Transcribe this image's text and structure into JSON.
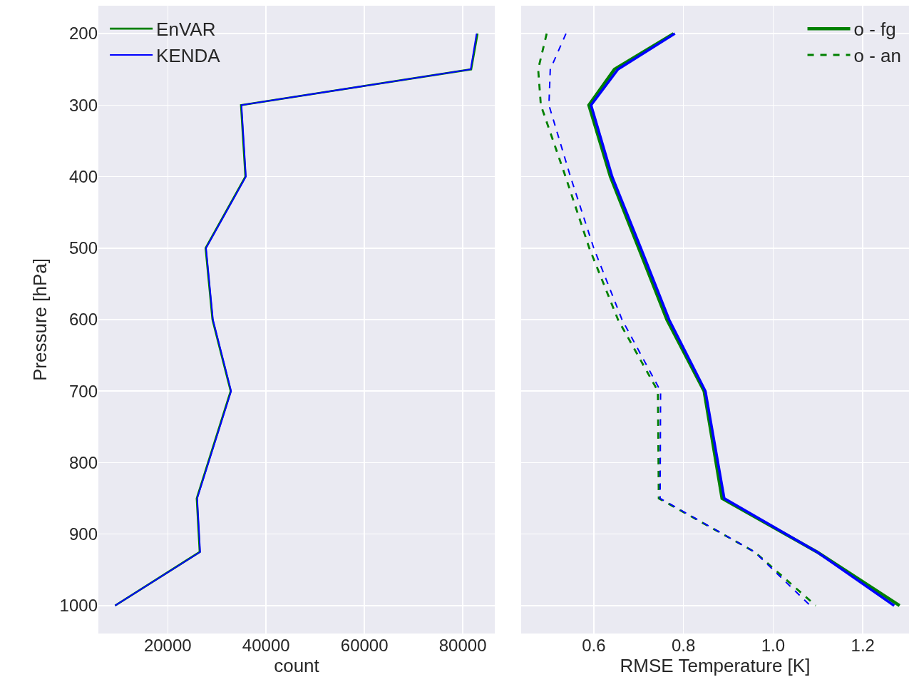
{
  "chart_data": [
    {
      "type": "line",
      "xlabel": "count",
      "ylabel": "Pressure [hPa]",
      "xlim": [
        5900,
        86500
      ],
      "xticks": [
        20000,
        40000,
        60000,
        80000
      ],
      "ylim": [
        1039,
        161
      ],
      "yticks": [
        200,
        300,
        400,
        500,
        600,
        700,
        800,
        900,
        1000
      ],
      "grid": true,
      "legend": "top left",
      "marker": "none",
      "series": [
        {
          "name": "EnVAR",
          "color": "#008000",
          "line_style": "solid",
          "x": [
            83000,
            81700,
            34900,
            35800,
            27700,
            29100,
            32800,
            25900,
            26500,
            9300
          ],
          "values": [
            200,
            250,
            300,
            400,
            500,
            600,
            700,
            850,
            925,
            1000
          ]
        },
        {
          "name": "KENDA",
          "color": "#0000ff",
          "line_style": "solid",
          "x": [
            82800,
            81600,
            35000,
            35900,
            27800,
            29200,
            32900,
            26000,
            26600,
            9300
          ],
          "values": [
            200,
            250,
            300,
            400,
            500,
            600,
            700,
            850,
            925,
            1000
          ]
        }
      ]
    },
    {
      "type": "line",
      "xlabel": "RMSE Temperature [K]",
      "xlim": [
        0.438,
        1.303
      ],
      "xticks": [
        {
          "value": 0.6,
          "label": "0.6"
        },
        {
          "value": 0.8,
          "label": "0.8"
        },
        {
          "value": 1.0,
          "label": "1.0"
        },
        {
          "value": 1.2,
          "label": "1.2"
        }
      ],
      "ylim": [
        1039,
        161
      ],
      "yticks": [
        200,
        300,
        400,
        500,
        600,
        700,
        800,
        900,
        1000
      ],
      "tick_labels": "x",
      "grid": true,
      "legend": "top right",
      "marker": "none",
      "series": [
        {
          "name": "o - fg",
          "color": "#008000",
          "line_style": "solid",
          "x": [
            0.778,
            0.646,
            0.589,
            0.637,
            0.7,
            0.763,
            0.846,
            0.886,
            1.098,
            1.282
          ],
          "values": [
            200,
            250,
            300,
            400,
            500,
            600,
            700,
            850,
            925,
            1000
          ]
        },
        {
          "color": "#0000ff",
          "line_style": "solid",
          "x": [
            0.781,
            0.654,
            0.594,
            0.641,
            0.705,
            0.768,
            0.849,
            0.891,
            1.098,
            1.27
          ],
          "values": [
            200,
            250,
            300,
            400,
            500,
            600,
            700,
            850,
            925,
            1000
          ]
        },
        {
          "name": "o - an",
          "color": "#008000",
          "line_style": "dashed",
          "x": [
            0.495,
            0.476,
            0.482,
            0.537,
            0.59,
            0.654,
            0.743,
            0.745,
            0.959,
            1.095
          ],
          "values": [
            200,
            250,
            300,
            400,
            500,
            600,
            700,
            850,
            925,
            1000
          ]
        },
        {
          "color": "#0000ff",
          "line_style": "dashed",
          "x": [
            0.538,
            0.503,
            0.5,
            0.548,
            0.6,
            0.663,
            0.749,
            0.748,
            0.959,
            1.083
          ],
          "values": [
            200,
            250,
            300,
            400,
            500,
            600,
            700,
            850,
            925,
            1000
          ]
        }
      ]
    }
  ]
}
